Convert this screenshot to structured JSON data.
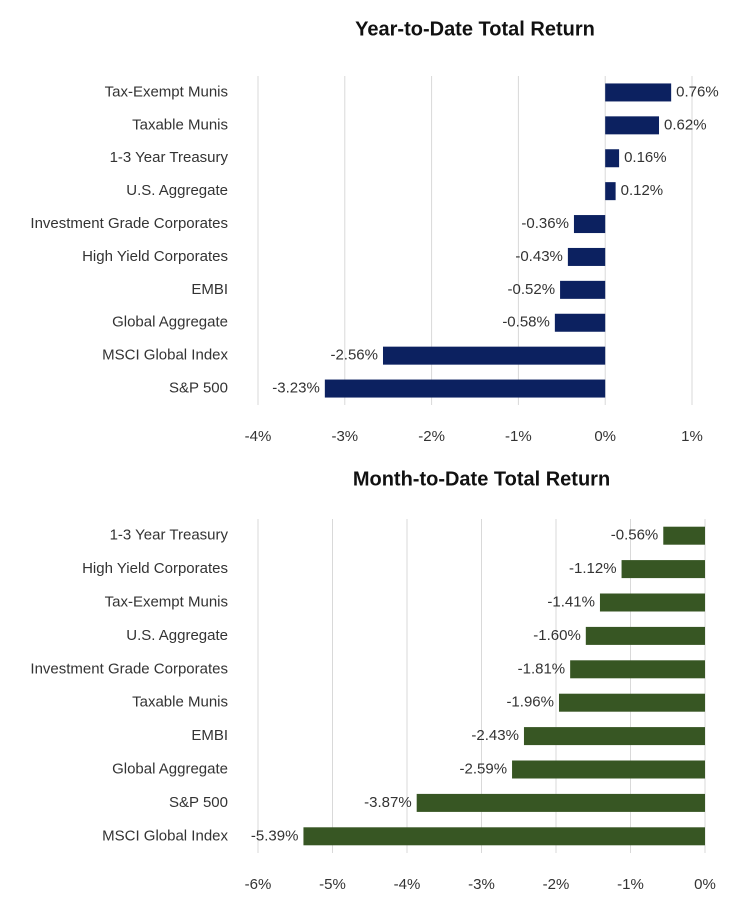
{
  "chart_data": [
    {
      "type": "bar",
      "orientation": "horizontal",
      "title": "Year-to-Date Total Return",
      "categories": [
        "Tax-Exempt Munis",
        "Taxable Munis",
        "1-3 Year Treasury",
        "U.S. Aggregate",
        "Investment Grade Corporates",
        "High Yield Corporates",
        "EMBI",
        "Global Aggregate",
        "MSCI Global Index",
        "S&P 500"
      ],
      "values": [
        0.76,
        0.62,
        0.16,
        0.12,
        -0.36,
        -0.43,
        -0.52,
        -0.58,
        -2.56,
        -3.23
      ],
      "value_labels": [
        "0.76%",
        "0.62%",
        "0.16%",
        "0.12%",
        "-0.36%",
        "-0.43%",
        "-0.52%",
        "-0.58%",
        "-2.56%",
        "-3.23%"
      ],
      "color": "#0c2160",
      "xlim": [
        -4,
        1
      ],
      "xticks": [
        {
          "value": -4,
          "label": "-4%"
        },
        {
          "value": -3,
          "label": "-3%"
        },
        {
          "value": -2,
          "label": "-2%"
        },
        {
          "value": -1,
          "label": "-1%"
        },
        {
          "value": 0,
          "label": "0%"
        },
        {
          "value": 1,
          "label": "1%"
        }
      ],
      "grid": true
    },
    {
      "type": "bar",
      "orientation": "horizontal",
      "title": "Month-to-Date Total Return",
      "categories": [
        "1-3 Year Treasury",
        "High Yield Corporates",
        "Tax-Exempt Munis",
        "U.S. Aggregate",
        "Investment Grade Corporates",
        "Taxable Munis",
        "EMBI",
        "Global Aggregate",
        "S&P 500",
        "MSCI Global Index"
      ],
      "values": [
        -0.56,
        -1.12,
        -1.41,
        -1.6,
        -1.81,
        -1.96,
        -2.43,
        -2.59,
        -3.87,
        -5.39
      ],
      "value_labels": [
        "-0.56%",
        "-1.12%",
        "-1.41%",
        "-1.60%",
        "-1.81%",
        "-1.96%",
        "-2.43%",
        "-2.59%",
        "-3.87%",
        "-5.39%"
      ],
      "color": "#375623",
      "xlim": [
        -6,
        0
      ],
      "xticks": [
        {
          "value": -6,
          "label": "-6%"
        },
        {
          "value": -5,
          "label": "-5%"
        },
        {
          "value": -4,
          "label": "-4%"
        },
        {
          "value": -3,
          "label": "-3%"
        },
        {
          "value": -2,
          "label": "-2%"
        },
        {
          "value": -1,
          "label": "-1%"
        },
        {
          "value": 0,
          "label": "0%"
        }
      ],
      "grid": true
    }
  ]
}
